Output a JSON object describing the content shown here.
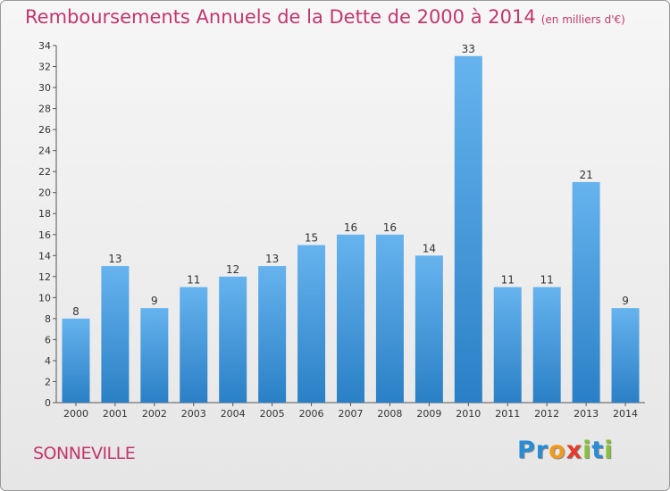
{
  "chart_data": {
    "type": "bar",
    "title": "Remboursements Annuels de la Dette de 2000 à 2014",
    "subtitle": "(en milliers d'€)",
    "categories": [
      "2000",
      "2001",
      "2002",
      "2003",
      "2004",
      "2005",
      "2006",
      "2007",
      "2008",
      "2009",
      "2010",
      "2011",
      "2012",
      "2013",
      "2014"
    ],
    "values": [
      8,
      13,
      9,
      11,
      12,
      13,
      15,
      16,
      16,
      14,
      33,
      11,
      11,
      21,
      9
    ],
    "ylim": [
      0,
      34
    ],
    "yticks": [
      0,
      2,
      4,
      6,
      8,
      10,
      12,
      14,
      16,
      18,
      20,
      22,
      24,
      26,
      28,
      30,
      32,
      34
    ],
    "xlabel": "",
    "ylabel": "",
    "grid": false,
    "colors": {
      "bar_light": "#66b3ee",
      "bar_dark": "#2a80c6",
      "title": "#c2366e",
      "axis": "#555555"
    }
  },
  "footer": {
    "commune": "SONNEVILLE",
    "logo": [
      "P",
      "r",
      "o",
      "x",
      "i",
      "t",
      "i"
    ],
    "logo_colors": [
      "#2a8dd4",
      "#2a8dd4",
      "#f29a1d",
      "#e43c2b",
      "#87c13a",
      "#2a8dd4",
      "#87c13a"
    ]
  }
}
